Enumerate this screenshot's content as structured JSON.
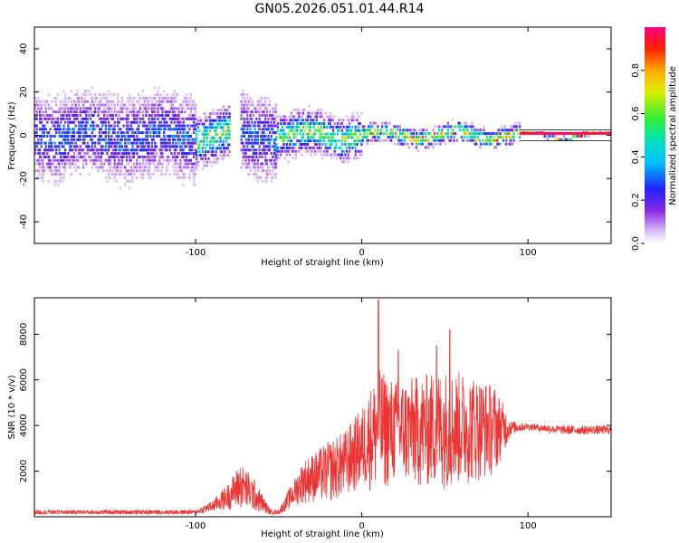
{
  "title": "GN05.2026.051.01.44.R14",
  "colors": {
    "signal": "#ee3333",
    "frame": "#000000",
    "background": "#ffffff"
  },
  "chart_data": [
    {
      "type": "heatmap",
      "name": "spectrogram",
      "xlabel": "Height of straight line (km)",
      "ylabel": "Frequency (Hz)",
      "xlim": [
        -197,
        150
      ],
      "ylim": [
        -50,
        50
      ],
      "x_ticks": [
        -100,
        0,
        100
      ],
      "y_ticks": [
        -40,
        -20,
        0,
        20,
        40
      ],
      "colorbar": {
        "label": "Normalized spectral amplitude",
        "range": [
          0,
          1
        ],
        "ticks": [
          0.0,
          0.2,
          0.4,
          0.6,
          0.8
        ]
      },
      "segments": [
        {
          "x": [
            -197,
            -100
          ],
          "level": "low",
          "spread_hz": 50
        },
        {
          "x": [
            -100,
            -80
          ],
          "level": "medium",
          "spread_hz": 30
        },
        {
          "x": [
            -73,
            -52
          ],
          "level": "low",
          "spread_hz": 50
        },
        {
          "x": [
            -52,
            0
          ],
          "level": "medium",
          "spread_hz": 25
        },
        {
          "x": [
            0,
            95
          ],
          "level": "high",
          "spread_hz": 12
        },
        {
          "x": [
            95,
            150
          ],
          "level": "peak",
          "spread_hz": 2
        }
      ]
    },
    {
      "type": "line",
      "name": "snr",
      "xlabel": "Height of straight line (km)",
      "ylabel": "SNR (10 * v/v)",
      "xlim": [
        -197,
        150
      ],
      "ylim": [
        0,
        9600
      ],
      "x_ticks": [
        -100,
        0,
        100
      ],
      "y_ticks": [
        2000,
        4000,
        6000,
        8000
      ],
      "envelope": {
        "x": [
          -197,
          -120,
          -100,
          -90,
          -80,
          -73,
          -65,
          -55,
          -50,
          -35,
          -20,
          -10,
          0,
          10,
          20,
          35,
          50,
          65,
          80,
          90,
          100,
          120,
          150
        ],
        "low": [
          100,
          100,
          100,
          200,
          300,
          300,
          200,
          100,
          100,
          600,
          600,
          800,
          1200,
          1000,
          1400,
          1200,
          1200,
          1400,
          1800,
          3600,
          3800,
          3600,
          3600
        ],
        "high": [
          300,
          300,
          300,
          700,
          1500,
          2400,
          1700,
          300,
          300,
          2500,
          3300,
          3800,
          4800,
          6500,
          6000,
          6200,
          6500,
          6300,
          5800,
          4200,
          4100,
          4000,
          4000
        ]
      },
      "peaks": [
        {
          "x": 10,
          "y": 9500
        },
        {
          "x": 22,
          "y": 7300
        },
        {
          "x": 53,
          "y": 8200
        },
        {
          "x": 45,
          "y": 7500
        }
      ]
    }
  ]
}
